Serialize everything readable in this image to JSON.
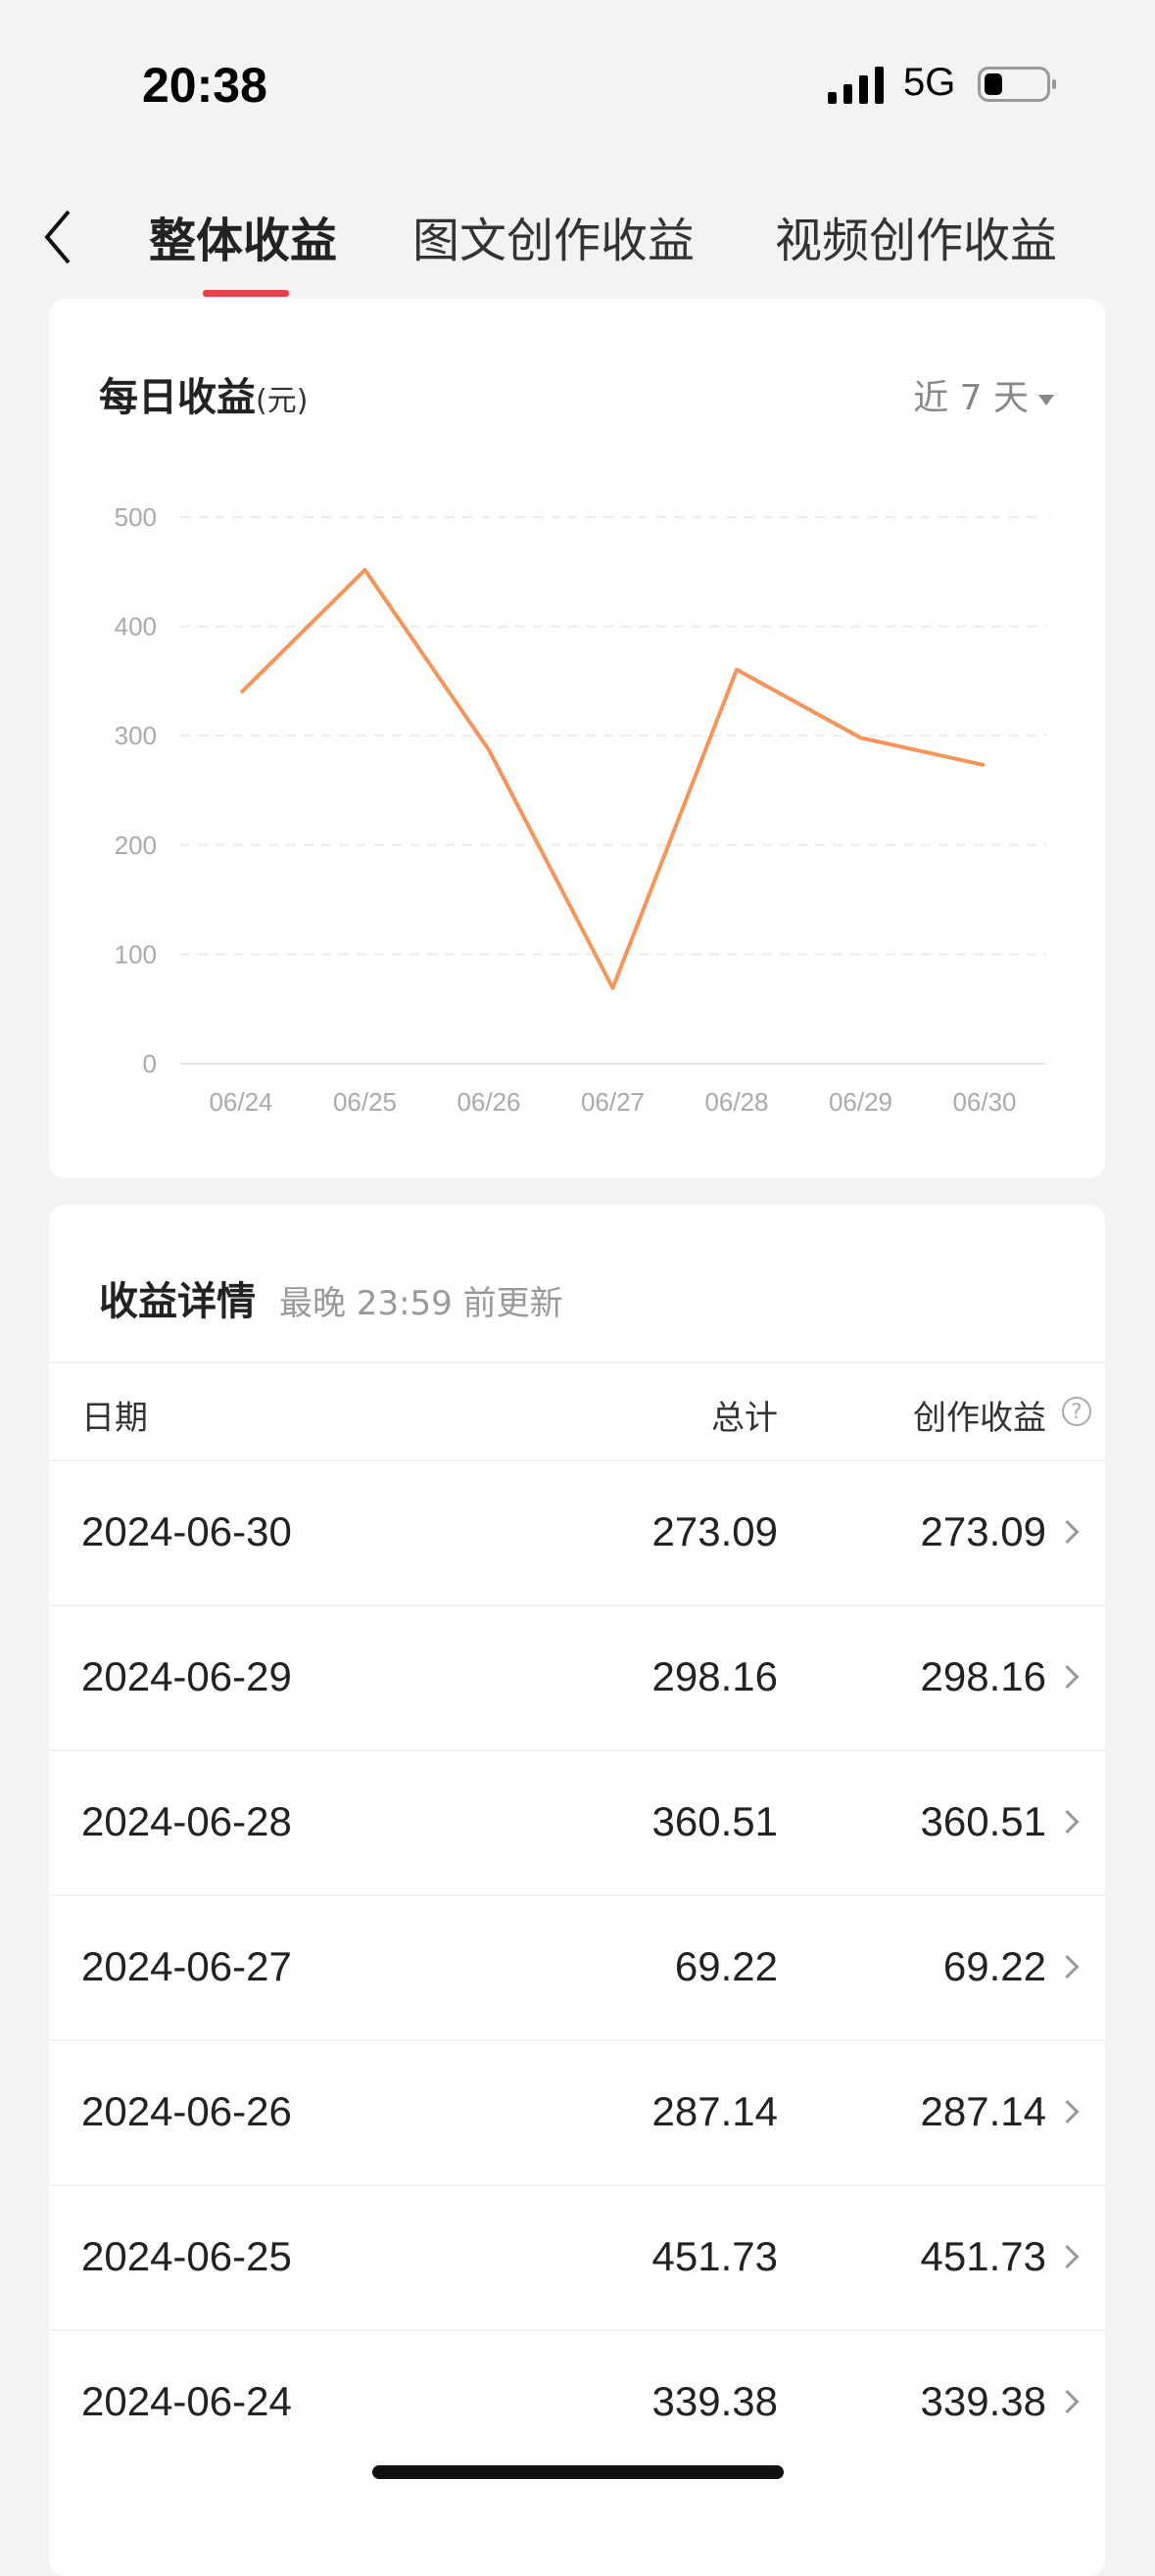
{
  "status_bar": {
    "time": "20:38",
    "network": "5G",
    "battery_level": 0.25
  },
  "nav": {
    "back_icon": "chevron-left-icon",
    "tabs": [
      {
        "label": "整体收益",
        "active": true
      },
      {
        "label": "图文创作收益",
        "active": false
      },
      {
        "label": "视频创作收益",
        "active": false
      }
    ]
  },
  "daily": {
    "title": "每日收益",
    "unit": "(元)",
    "range_label": "近 7 天"
  },
  "chart_data": {
    "type": "line",
    "categories": [
      "06/24",
      "06/25",
      "06/26",
      "06/27",
      "06/28",
      "06/29",
      "06/30"
    ],
    "values": [
      339.38,
      451.73,
      287.14,
      69.22,
      360.51,
      298.16,
      273.09
    ],
    "yticks": [
      "0",
      "100",
      "200",
      "300",
      "400",
      "500"
    ],
    "ylim": [
      0,
      500
    ],
    "grid": true,
    "color": "#f5955a"
  },
  "details": {
    "title": "收益详情",
    "subtitle": "最晚 23:59 前更新",
    "headers": {
      "date": "日期",
      "total": "总计",
      "creator": "创作收益"
    },
    "rows": [
      {
        "date": "2024-06-30",
        "total": "273.09",
        "creator": "273.09"
      },
      {
        "date": "2024-06-29",
        "total": "298.16",
        "creator": "298.16"
      },
      {
        "date": "2024-06-28",
        "total": "360.51",
        "creator": "360.51"
      },
      {
        "date": "2024-06-27",
        "total": "69.22",
        "creator": "69.22"
      },
      {
        "date": "2024-06-26",
        "total": "287.14",
        "creator": "287.14"
      },
      {
        "date": "2024-06-25",
        "total": "451.73",
        "creator": "451.73"
      },
      {
        "date": "2024-06-24",
        "total": "339.38",
        "creator": "339.38"
      }
    ]
  }
}
